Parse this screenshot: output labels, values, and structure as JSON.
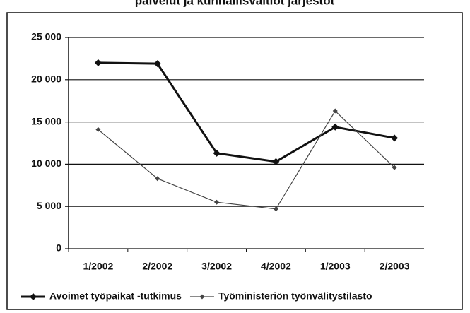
{
  "chart_data": {
    "type": "line",
    "title": "palvelut ja kunnallisvaltiot järjestöt",
    "categories": [
      "1/2002",
      "2/2002",
      "3/2002",
      "4/2002",
      "1/2003",
      "2/2003"
    ],
    "series": [
      {
        "name": "Avoimet työpaikat -tutkimus",
        "color": "#111111",
        "width": 3,
        "values": [
          22000,
          21900,
          11300,
          10300,
          14400,
          13100
        ]
      },
      {
        "name": "Työministeriön työnvälitystilasto",
        "color": "#444444",
        "width": 1.2,
        "values": [
          14100,
          8300,
          5500,
          4700,
          16300,
          9600
        ]
      }
    ],
    "ylim": [
      0,
      25000
    ],
    "yticks": [
      0,
      {
        "value": 5000,
        "label": "5 000"
      },
      {
        "value": 10000,
        "label": "10 000"
      },
      {
        "value": 15000,
        "label": "15 000"
      },
      {
        "value": 20000,
        "label": "20 000"
      },
      {
        "value": 25000,
        "label": "25 000"
      }
    ],
    "grid": true,
    "legend": "bottom"
  }
}
